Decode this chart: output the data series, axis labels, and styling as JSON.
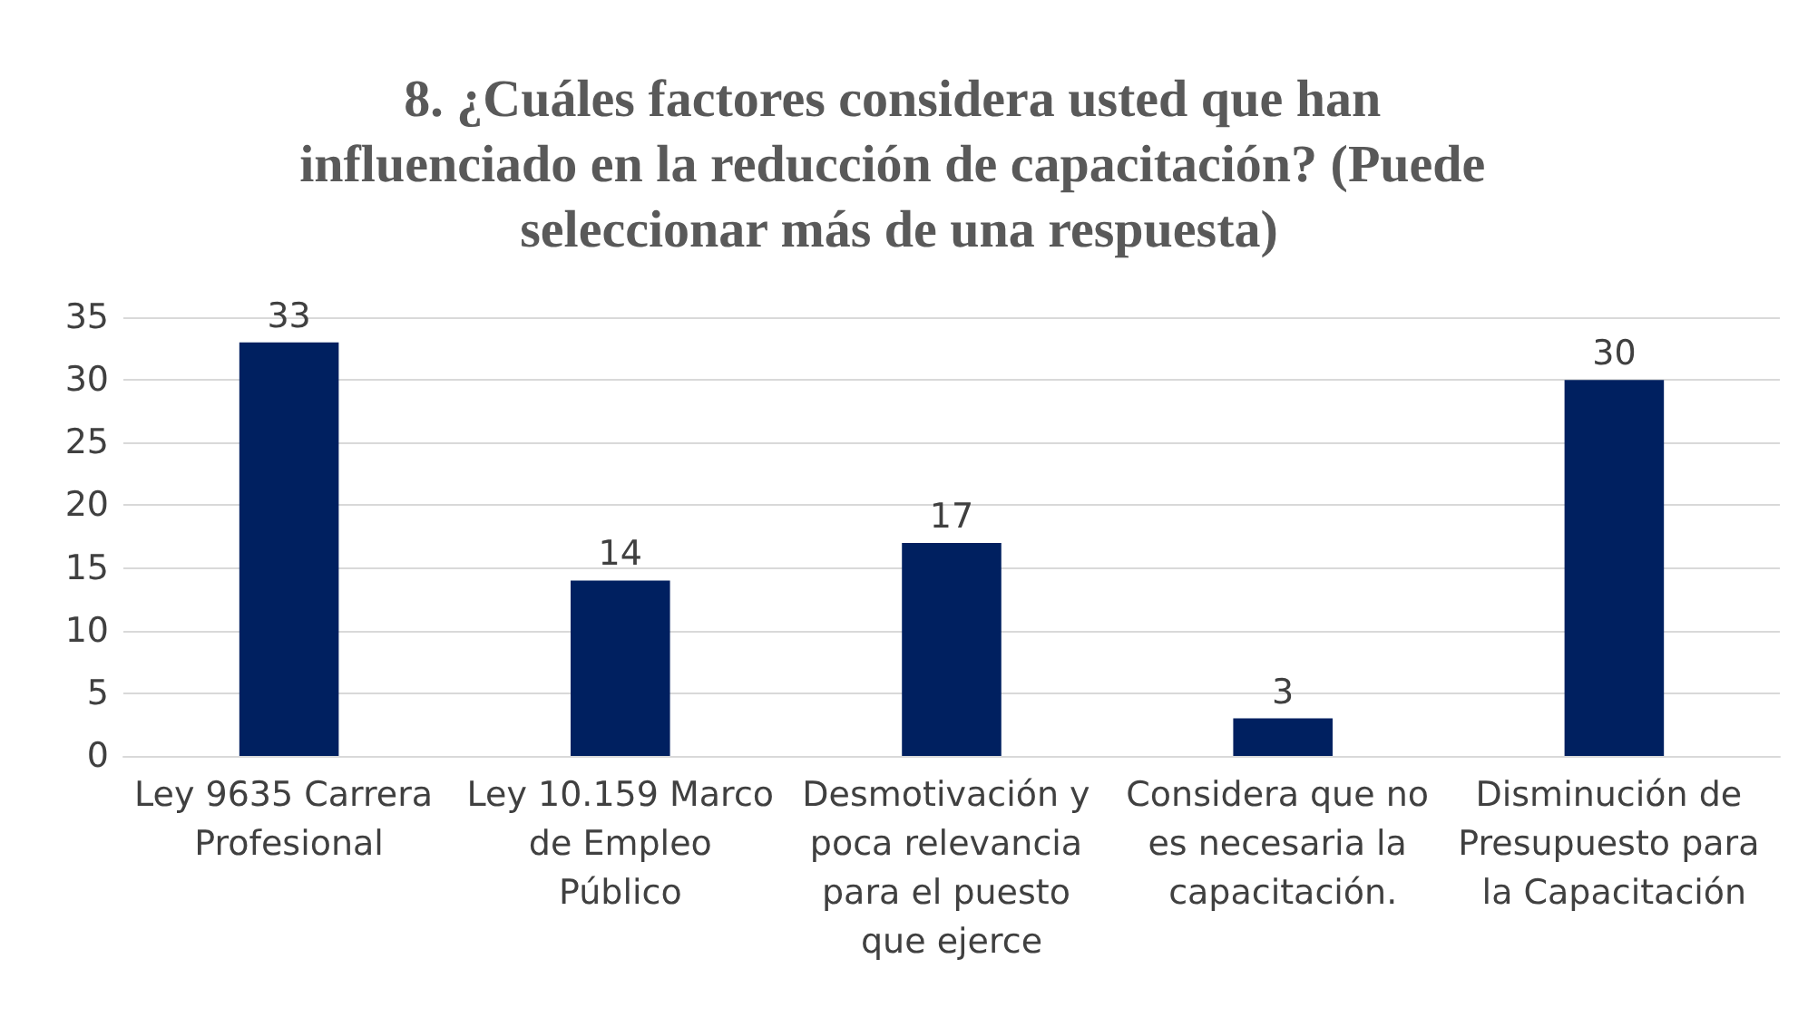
{
  "chart_data": {
    "type": "bar",
    "title": "8. ¿Cuáles factores considera usted que han influenciado en la reducción de capacitación? (Puede seleccionar más de una respuesta)",
    "categories": [
      "Ley 9635 Carrera Profesional",
      "Ley 10.159 Marco de Empleo Público",
      "Desmotivación y poca relevancia para el puesto que ejerce",
      "Considera que no es necesaria la capacitación.",
      "Disminución de Presupuesto para la Capacitación"
    ],
    "values": [
      33,
      14,
      17,
      3,
      30
    ],
    "color": "#002060",
    "data_labels": true,
    "ylim": [
      0,
      35
    ],
    "yticks": [
      0,
      5,
      10,
      15,
      20,
      25,
      30,
      35
    ],
    "grid": "y",
    "legend": false
  }
}
